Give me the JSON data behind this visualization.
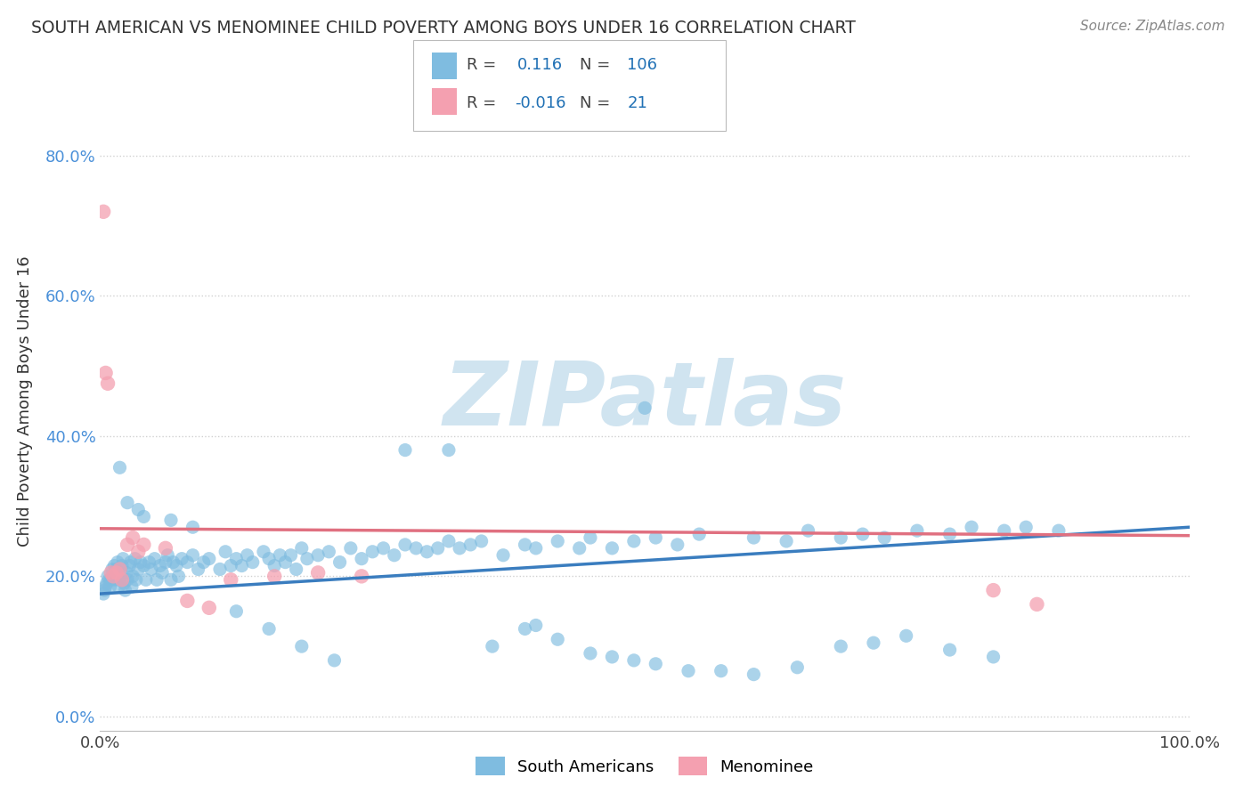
{
  "title": "SOUTH AMERICAN VS MENOMINEE CHILD POVERTY AMONG BOYS UNDER 16 CORRELATION CHART",
  "source": "Source: ZipAtlas.com",
  "ylabel": "Child Poverty Among Boys Under 16",
  "xlim": [
    0,
    1
  ],
  "ylim": [
    -0.02,
    0.92
  ],
  "yticks": [
    0.0,
    0.2,
    0.4,
    0.6,
    0.8
  ],
  "ytick_labels": [
    "0.0%",
    "20.0%",
    "40.0%",
    "60.0%",
    "80.0%"
  ],
  "xticks": [
    0.0,
    1.0
  ],
  "xtick_labels": [
    "0.0%",
    "100.0%"
  ],
  "blue_R": 0.116,
  "blue_N": 106,
  "pink_R": -0.016,
  "pink_N": 21,
  "blue_color": "#7fbce0",
  "pink_color": "#f4a0b0",
  "blue_line_color": "#3a7dbf",
  "pink_line_color": "#e07080",
  "blue_line_y0": 0.175,
  "blue_line_y1": 0.27,
  "pink_line_y0": 0.268,
  "pink_line_y1": 0.258,
  "watermark": "ZIPatlas",
  "watermark_color": "#d0e4f0",
  "legend_R_color": "#2171b5",
  "legend_N_color": "#2171b5",
  "background_color": "#ffffff",
  "grid_color": "#cccccc",
  "blue_x": [
    0.003,
    0.004,
    0.005,
    0.006,
    0.007,
    0.008,
    0.009,
    0.01,
    0.011,
    0.012,
    0.013,
    0.014,
    0.015,
    0.016,
    0.017,
    0.018,
    0.019,
    0.02,
    0.021,
    0.022,
    0.023,
    0.024,
    0.025,
    0.027,
    0.028,
    0.029,
    0.03,
    0.032,
    0.033,
    0.035,
    0.037,
    0.04,
    0.042,
    0.045,
    0.047,
    0.05,
    0.052,
    0.055,
    0.057,
    0.06,
    0.062,
    0.065,
    0.067,
    0.07,
    0.072,
    0.075,
    0.08,
    0.085,
    0.09,
    0.095,
    0.1,
    0.11,
    0.115,
    0.12,
    0.125,
    0.13,
    0.135,
    0.14,
    0.15,
    0.155,
    0.16,
    0.165,
    0.17,
    0.175,
    0.18,
    0.185,
    0.19,
    0.2,
    0.21,
    0.22,
    0.23,
    0.24,
    0.25,
    0.26,
    0.27,
    0.28,
    0.29,
    0.3,
    0.31,
    0.32,
    0.33,
    0.34,
    0.35,
    0.37,
    0.39,
    0.4,
    0.42,
    0.44,
    0.45,
    0.47,
    0.49,
    0.51,
    0.53,
    0.55,
    0.6,
    0.63,
    0.65,
    0.68,
    0.7,
    0.72,
    0.75,
    0.78,
    0.8,
    0.83,
    0.85,
    0.88
  ],
  "blue_y": [
    0.175,
    0.18,
    0.185,
    0.19,
    0.2,
    0.195,
    0.185,
    0.195,
    0.21,
    0.2,
    0.215,
    0.195,
    0.21,
    0.22,
    0.185,
    0.195,
    0.205,
    0.215,
    0.225,
    0.19,
    0.18,
    0.205,
    0.195,
    0.215,
    0.22,
    0.185,
    0.2,
    0.225,
    0.195,
    0.21,
    0.22,
    0.215,
    0.195,
    0.22,
    0.21,
    0.225,
    0.195,
    0.215,
    0.205,
    0.22,
    0.23,
    0.195,
    0.22,
    0.215,
    0.2,
    0.225,
    0.22,
    0.23,
    0.21,
    0.22,
    0.225,
    0.21,
    0.235,
    0.215,
    0.225,
    0.215,
    0.23,
    0.22,
    0.235,
    0.225,
    0.215,
    0.23,
    0.22,
    0.23,
    0.21,
    0.24,
    0.225,
    0.23,
    0.235,
    0.22,
    0.24,
    0.225,
    0.235,
    0.24,
    0.23,
    0.245,
    0.24,
    0.235,
    0.24,
    0.25,
    0.24,
    0.245,
    0.25,
    0.23,
    0.245,
    0.24,
    0.25,
    0.24,
    0.255,
    0.24,
    0.25,
    0.255,
    0.245,
    0.26,
    0.255,
    0.25,
    0.265,
    0.255,
    0.26,
    0.255,
    0.265,
    0.26,
    0.27,
    0.265,
    0.27,
    0.265
  ],
  "blue_y_outliers": [
    0.355,
    0.305,
    0.295,
    0.285,
    0.28,
    0.27,
    0.15,
    0.125,
    0.1,
    0.08,
    0.44,
    0.38,
    0.38,
    0.1,
    0.125,
    0.13,
    0.11,
    0.09,
    0.085,
    0.08,
    0.075,
    0.065,
    0.065,
    0.06,
    0.07,
    0.1,
    0.105,
    0.115,
    0.095,
    0.085
  ],
  "blue_x_outliers": [
    0.018,
    0.025,
    0.035,
    0.04,
    0.065,
    0.085,
    0.125,
    0.155,
    0.185,
    0.215,
    0.5,
    0.28,
    0.32,
    0.36,
    0.39,
    0.4,
    0.42,
    0.45,
    0.47,
    0.49,
    0.51,
    0.54,
    0.57,
    0.6,
    0.64,
    0.68,
    0.71,
    0.74,
    0.78,
    0.82
  ],
  "pink_x": [
    0.003,
    0.005,
    0.007,
    0.01,
    0.012,
    0.015,
    0.018,
    0.02,
    0.025,
    0.03,
    0.035,
    0.04,
    0.06,
    0.08,
    0.1,
    0.12,
    0.16,
    0.2,
    0.24,
    0.82,
    0.86
  ],
  "pink_y": [
    0.72,
    0.49,
    0.475,
    0.205,
    0.2,
    0.205,
    0.21,
    0.195,
    0.245,
    0.255,
    0.235,
    0.245,
    0.24,
    0.165,
    0.155,
    0.195,
    0.2,
    0.205,
    0.2,
    0.18,
    0.16
  ]
}
